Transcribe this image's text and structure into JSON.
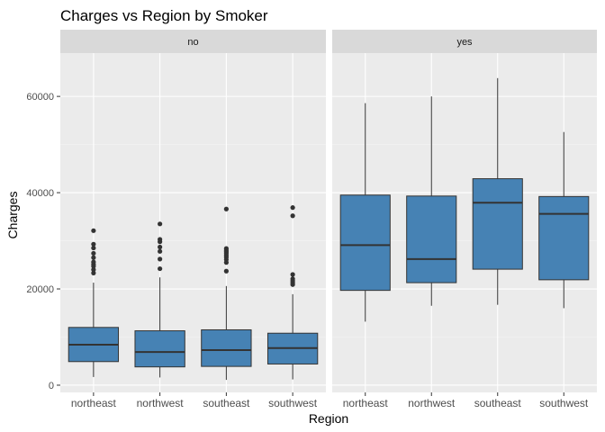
{
  "chart_data": {
    "type": "boxplot",
    "title": "Charges vs Region by Smoker",
    "xlabel": "Region",
    "ylabel": "Charges",
    "ylim": [
      -1500,
      69000
    ],
    "yticks": [
      0,
      20000,
      40000,
      60000
    ],
    "ytick_labels": [
      "0",
      "20000",
      "40000",
      "60000"
    ],
    "grid": true,
    "box_color": "#4682B4",
    "panel_background": "#EBEBEB",
    "strip_background": "#D9D9D9",
    "categories": [
      "northeast",
      "northwest",
      "southeast",
      "southwest"
    ],
    "facets": [
      {
        "label": "no",
        "boxes": [
          {
            "category": "northeast",
            "whisker_low": 1700,
            "q1": 4900,
            "median": 8400,
            "q3": 12000,
            "whisker_high": 21300,
            "outliers": [
              23300,
              24000,
              24700,
              25100,
              25600,
              26500,
              27400,
              28500,
              29300,
              32100
            ]
          },
          {
            "category": "northwest",
            "whisker_low": 1600,
            "q1": 3800,
            "median": 6900,
            "q3": 11300,
            "whisker_high": 22400,
            "outliers": [
              24200,
              26200,
              27800,
              28700,
              29800,
              30300,
              33500
            ]
          },
          {
            "category": "southeast",
            "whisker_low": 1100,
            "q1": 3900,
            "median": 7300,
            "q3": 11500,
            "whisker_high": 20600,
            "outliers": [
              23700,
              25500,
              26100,
              26600,
              27000,
              27400,
              27700,
              28000,
              28400,
              36600
            ]
          },
          {
            "category": "southwest",
            "whisker_low": 1200,
            "q1": 4400,
            "median": 7700,
            "q3": 10800,
            "whisker_high": 18900,
            "outliers": [
              20900,
              21300,
              21700,
              22100,
              23000,
              35200,
              36900
            ]
          }
        ]
      },
      {
        "label": "yes",
        "boxes": [
          {
            "category": "northeast",
            "whisker_low": 13200,
            "q1": 19700,
            "median": 29100,
            "q3": 39500,
            "whisker_high": 58600,
            "outliers": []
          },
          {
            "category": "northwest",
            "whisker_low": 16500,
            "q1": 21300,
            "median": 26200,
            "q3": 39300,
            "whisker_high": 60000,
            "outliers": []
          },
          {
            "category": "southeast",
            "whisker_low": 16700,
            "q1": 24100,
            "median": 37900,
            "q3": 42900,
            "whisker_high": 63800,
            "outliers": []
          },
          {
            "category": "southwest",
            "whisker_low": 16000,
            "q1": 21900,
            "median": 35600,
            "q3": 39200,
            "whisker_high": 52600,
            "outliers": []
          }
        ]
      }
    ]
  }
}
